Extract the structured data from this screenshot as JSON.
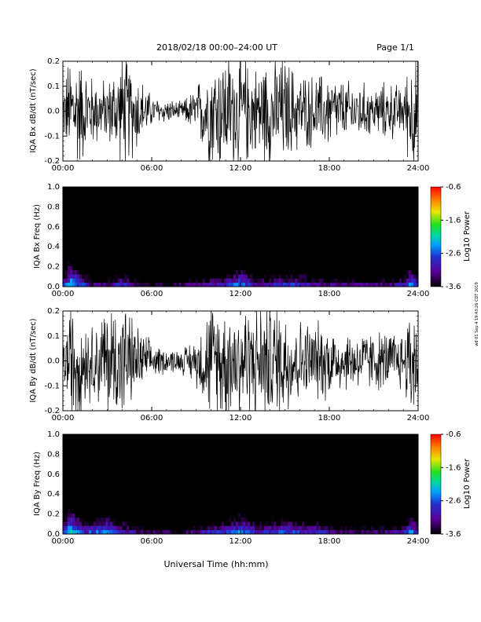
{
  "header": {
    "title": "2018/02/18   00:00–24:00 UT",
    "page": "Page 1/1"
  },
  "x_axis_label": "Universal Time (hh:mm)",
  "side_stamp": "wd 01 Sep 4 19:43:26 CDT 2019",
  "colors": {
    "trace": "#000000"
  },
  "chart_data": [
    {
      "type": "line",
      "ylabel": "IQA Bx dB/dt (nT/sec)",
      "ylim": [
        -0.2,
        0.2
      ],
      "yticks": [
        "0.2",
        "0.1",
        "0.0",
        "-0.1",
        "-0.2"
      ],
      "xticks": [
        "00:00",
        "06:00",
        "12:00",
        "18:00",
        "24:00"
      ],
      "xlim": [
        "00:00",
        "24:00"
      ],
      "x_hours": [
        0,
        0.5,
        1,
        1.5,
        2,
        3,
        4,
        5,
        6,
        7,
        8,
        9,
        10,
        11,
        12,
        13,
        14,
        15,
        16,
        17,
        18,
        19,
        20,
        21,
        22,
        23,
        23.5,
        24
      ],
      "amplitude": [
        0.08,
        0.2,
        0.2,
        0.15,
        0.12,
        0.1,
        0.2,
        0.14,
        0.05,
        0.04,
        0.03,
        0.08,
        0.2,
        0.2,
        0.2,
        0.15,
        0.2,
        0.18,
        0.13,
        0.12,
        0.13,
        0.1,
        0.1,
        0.08,
        0.1,
        0.08,
        0.2,
        0.2
      ]
    },
    {
      "type": "heatmap",
      "ylabel": "IQA Bx Freq (Hz)",
      "ylim": [
        0.0,
        1.0
      ],
      "yticks": [
        "1.0",
        "0.8",
        "0.6",
        "0.4",
        "0.2",
        "0.0"
      ],
      "xticks": [
        "00:00",
        "06:00",
        "12:00",
        "18:00",
        "24:00"
      ],
      "xlim": [
        "00:00",
        "24:00"
      ],
      "colorbar": {
        "label": "Log10 Power",
        "ticks": [
          "-0.6",
          "-1.6",
          "-2.6",
          "-3.6"
        ],
        "range": [
          -3.6,
          -0.6
        ]
      },
      "x_hours": [
        0,
        0.5,
        1,
        1.5,
        2,
        3,
        4,
        5,
        6,
        7,
        8,
        9,
        10,
        11,
        12,
        13,
        14,
        15,
        16,
        17,
        18,
        19,
        20,
        21,
        22,
        23,
        23.5,
        24
      ],
      "low_freq_power": [
        -2.6,
        -1.6,
        -2.0,
        -2.4,
        -2.8,
        -2.8,
        -2.4,
        -2.8,
        -3.0,
        -3.0,
        -3.0,
        -2.8,
        -2.6,
        -2.5,
        -2.0,
        -2.6,
        -2.6,
        -2.4,
        -2.4,
        -2.6,
        -2.8,
        -2.8,
        -2.8,
        -2.8,
        -2.8,
        -2.6,
        -2.0,
        -2.4
      ]
    },
    {
      "type": "line",
      "ylabel": "IQA By dB/dt (nT/sec)",
      "ylim": [
        -0.2,
        0.2
      ],
      "yticks": [
        "0.2",
        "0.1",
        "0.0",
        "-0.1",
        "-0.2"
      ],
      "xticks": [
        "00:00",
        "06:00",
        "12:00",
        "18:00",
        "24:00"
      ],
      "xlim": [
        "00:00",
        "24:00"
      ],
      "x_hours": [
        0,
        0.5,
        1,
        1.5,
        2,
        3,
        4,
        5,
        6,
        7,
        8,
        9,
        10,
        11,
        12,
        13,
        14,
        15,
        16,
        17,
        18,
        19,
        20,
        21,
        22,
        23,
        23.5,
        24
      ],
      "amplitude": [
        0.06,
        0.2,
        0.2,
        0.15,
        0.12,
        0.2,
        0.2,
        0.12,
        0.06,
        0.04,
        0.04,
        0.08,
        0.2,
        0.2,
        0.2,
        0.2,
        0.2,
        0.2,
        0.14,
        0.13,
        0.13,
        0.1,
        0.1,
        0.1,
        0.1,
        0.1,
        0.2,
        0.2
      ]
    },
    {
      "type": "heatmap",
      "ylabel": "IQA By Freq (Hz)",
      "ylim": [
        0.0,
        1.0
      ],
      "yticks": [
        "1.0",
        "0.8",
        "0.6",
        "0.4",
        "0.2",
        "0.0"
      ],
      "xticks": [
        "00:00",
        "06:00",
        "12:00",
        "18:00",
        "24:00"
      ],
      "xlim": [
        "00:00",
        "24:00"
      ],
      "colorbar": {
        "label": "Log10 Power",
        "ticks": [
          "-0.6",
          "-1.6",
          "-2.6",
          "-3.6"
        ],
        "range": [
          -3.6,
          -0.6
        ]
      },
      "x_hours": [
        0,
        0.5,
        1,
        1.5,
        2,
        3,
        4,
        5,
        6,
        7,
        8,
        9,
        10,
        11,
        12,
        13,
        14,
        15,
        16,
        17,
        18,
        19,
        20,
        21,
        22,
        23,
        23.5,
        24
      ],
      "low_freq_power": [
        -2.4,
        -1.6,
        -2.0,
        -2.4,
        -2.2,
        -2.0,
        -2.4,
        -2.8,
        -3.0,
        -3.0,
        -3.0,
        -2.8,
        -2.4,
        -2.4,
        -2.0,
        -2.4,
        -2.4,
        -2.2,
        -2.4,
        -2.4,
        -2.6,
        -2.8,
        -2.8,
        -2.8,
        -2.8,
        -2.6,
        -2.0,
        -2.4
      ]
    }
  ]
}
